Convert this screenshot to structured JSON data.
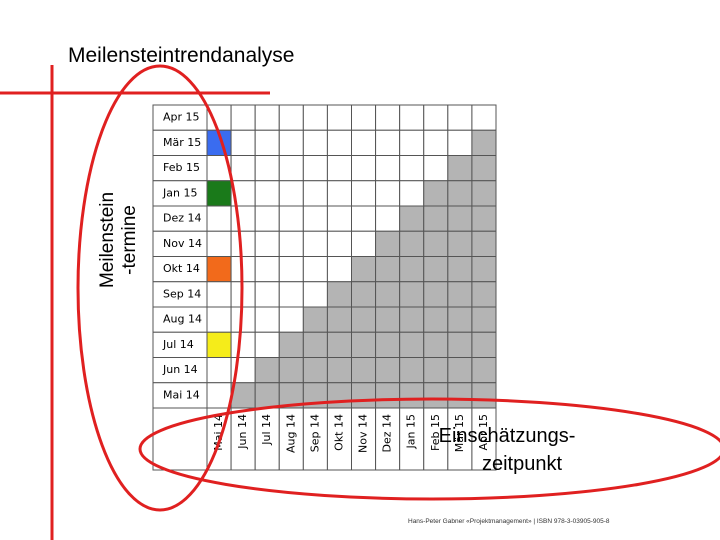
{
  "title": "Meilensteintrendanalyse",
  "y_label": [
    "Meilenstein",
    "-termine"
  ],
  "rows": [
    {
      "label": "Apr 15"
    },
    {
      "label": "Mär 15",
      "color": "#3a6cf0"
    },
    {
      "label": "Feb 15"
    },
    {
      "label": "Jan 15",
      "color": "#1a7a1a"
    },
    {
      "label": "Dez 14"
    },
    {
      "label": "Nov 14"
    },
    {
      "label": "Okt 14",
      "color": "#f26a1b"
    },
    {
      "label": "Sep 14"
    },
    {
      "label": "Aug 14"
    },
    {
      "label": "Jul 14",
      "color": "#f5ec1a"
    },
    {
      "label": "Jun 14"
    },
    {
      "label": "Mai 14"
    }
  ],
  "columns": [
    "Mai 14",
    "Jun 14",
    "Jul 14",
    "Aug 14",
    "Sep 14",
    "Okt 14",
    "Nov 14",
    "Dez 14",
    "Jan 15",
    "Feb 15",
    "Mär 15",
    "Apr 15"
  ],
  "annotation": [
    "Einschätzungs-",
    "zeitpunkt"
  ],
  "footer": "Hans-Peter Gabner «Projektmanagement» | ISBN 978-3-03905-905-8"
}
